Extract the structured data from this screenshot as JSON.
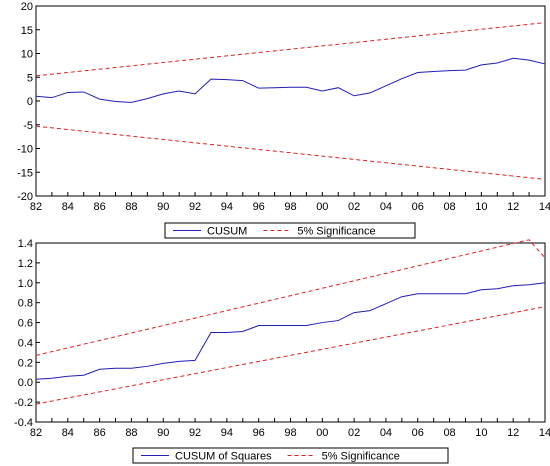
{
  "chart_data": [
    {
      "type": "line",
      "title": "",
      "xlabel": "",
      "ylabel": "",
      "x": [
        1982,
        1983,
        1984,
        1985,
        1986,
        1987,
        1988,
        1989,
        1990,
        1991,
        1992,
        1993,
        1994,
        1995,
        1996,
        1997,
        1998,
        1999,
        2000,
        2001,
        2002,
        2003,
        2004,
        2005,
        2006,
        2007,
        2008,
        2009,
        2010,
        2011,
        2012,
        2013,
        2014
      ],
      "xlim": [
        1982,
        2014
      ],
      "ylim": [
        -20,
        20
      ],
      "x_tick_values": [
        1982,
        1984,
        1986,
        1988,
        1990,
        1992,
        1994,
        1996,
        1998,
        2000,
        2002,
        2004,
        2006,
        2008,
        2010,
        2012,
        2014
      ],
      "x_tick_labels": [
        "82",
        "84",
        "86",
        "88",
        "90",
        "92",
        "94",
        "96",
        "98",
        "00",
        "02",
        "04",
        "06",
        "08",
        "10",
        "12",
        "14"
      ],
      "y_ticks": [
        -20,
        -15,
        -10,
        -5,
        0,
        5,
        10,
        15,
        20
      ],
      "y_tick_labels": [
        "-20",
        "-15",
        "-10",
        "-5",
        "0",
        "5",
        "10",
        "15",
        "20"
      ],
      "series": [
        {
          "name": "CUSUM",
          "color": "#1f1fb4",
          "style": "solid",
          "values": [
            1.0,
            0.7,
            1.8,
            1.9,
            0.4,
            -0.1,
            -0.3,
            0.5,
            1.5,
            2.1,
            1.5,
            4.6,
            4.5,
            4.3,
            2.7,
            2.8,
            2.9,
            2.9,
            2.1,
            2.8,
            1.1,
            1.7,
            3.2,
            4.7,
            6.0,
            6.2,
            6.4,
            6.5,
            7.6,
            8.0,
            9.0,
            8.6,
            7.8
          ]
        },
        {
          "name": "5% Significance",
          "color": "#e02020",
          "style": "dashed",
          "values": [
            5.3,
            5.65,
            6.0,
            6.35,
            6.7,
            7.05,
            7.4,
            7.75,
            8.1,
            8.45,
            8.8,
            9.15,
            9.5,
            9.85,
            10.2,
            10.55,
            10.9,
            11.25,
            11.6,
            11.95,
            12.3,
            12.65,
            13.0,
            13.35,
            13.7,
            14.05,
            14.4,
            14.75,
            15.1,
            15.45,
            15.8,
            16.15,
            16.5
          ]
        },
        {
          "name": "",
          "color": "#e02020",
          "style": "dashed",
          "legend": false,
          "values": [
            -5.3,
            -5.65,
            -6.0,
            -6.35,
            -6.7,
            -7.05,
            -7.4,
            -7.75,
            -8.1,
            -8.45,
            -8.8,
            -9.15,
            -9.5,
            -9.85,
            -10.2,
            -10.55,
            -10.9,
            -11.25,
            -11.6,
            -11.95,
            -12.3,
            -12.65,
            -13.0,
            -13.35,
            -13.7,
            -14.05,
            -14.4,
            -14.75,
            -15.1,
            -15.45,
            -15.8,
            -16.15,
            -16.5
          ]
        }
      ],
      "legend": {
        "position": "bottom-center",
        "entries": [
          "CUSUM",
          "5% Significance"
        ]
      },
      "grid": false
    },
    {
      "type": "line",
      "title": "",
      "xlabel": "",
      "ylabel": "",
      "x": [
        1982,
        1983,
        1984,
        1985,
        1986,
        1987,
        1988,
        1989,
        1990,
        1991,
        1992,
        1993,
        1994,
        1995,
        1996,
        1997,
        1998,
        1999,
        2000,
        2001,
        2002,
        2003,
        2004,
        2005,
        2006,
        2007,
        2008,
        2009,
        2010,
        2011,
        2012,
        2013,
        2014
      ],
      "xlim": [
        1982,
        2014
      ],
      "ylim": [
        -0.4,
        1.4
      ],
      "x_tick_values": [
        1982,
        1984,
        1986,
        1988,
        1990,
        1992,
        1994,
        1996,
        1998,
        2000,
        2002,
        2004,
        2006,
        2008,
        2010,
        2012,
        2014
      ],
      "x_tick_labels": [
        "82",
        "84",
        "86",
        "88",
        "90",
        "92",
        "94",
        "96",
        "98",
        "00",
        "02",
        "04",
        "06",
        "08",
        "10",
        "12",
        "14"
      ],
      "y_ticks": [
        -0.4,
        -0.2,
        0.0,
        0.2,
        0.4,
        0.6,
        0.8,
        1.0,
        1.2,
        1.4
      ],
      "y_tick_labels": [
        "-0.4",
        "-0.2",
        "0.0",
        "0.2",
        "0.4",
        "0.6",
        "0.8",
        "1.0",
        "1.2",
        "1.4"
      ],
      "series": [
        {
          "name": "CUSUM of Squares",
          "color": "#1f1fb4",
          "style": "solid",
          "values": [
            0.03,
            0.04,
            0.06,
            0.07,
            0.13,
            0.14,
            0.14,
            0.16,
            0.19,
            0.21,
            0.22,
            0.5,
            0.5,
            0.51,
            0.57,
            0.57,
            0.57,
            0.57,
            0.6,
            0.62,
            0.7,
            0.72,
            0.79,
            0.86,
            0.89,
            0.89,
            0.89,
            0.89,
            0.93,
            0.94,
            0.97,
            0.98,
            1.0
          ]
        },
        {
          "name": "5% Significance",
          "color": "#e02020",
          "style": "dashed",
          "values": [
            0.27,
            0.3075,
            0.345,
            0.3825,
            0.42,
            0.4575,
            0.495,
            0.5325,
            0.57,
            0.6075,
            0.645,
            0.6825,
            0.72,
            0.7575,
            0.795,
            0.8325,
            0.87,
            0.9075,
            0.945,
            0.9825,
            1.02,
            1.0575,
            1.095,
            1.1325,
            1.17,
            1.2075,
            1.245,
            1.2825,
            1.32,
            1.3575,
            1.395,
            1.4325,
            1.25
          ]
        },
        {
          "name": "",
          "color": "#e02020",
          "style": "dashed",
          "legend": false,
          "values": [
            -0.22,
            -0.1894,
            -0.1588,
            -0.1281,
            -0.0975,
            -0.0669,
            -0.0363,
            -0.0056,
            0.025,
            0.0556,
            0.0863,
            0.1169,
            0.1475,
            0.1781,
            0.2088,
            0.2394,
            0.27,
            0.3006,
            0.3313,
            0.3619,
            0.3925,
            0.4231,
            0.4538,
            0.4844,
            0.515,
            0.5456,
            0.5763,
            0.6069,
            0.6375,
            0.6681,
            0.6988,
            0.7294,
            0.76
          ]
        }
      ],
      "legend": {
        "position": "bottom-center",
        "entries": [
          "CUSUM of Squares",
          "5% Significance"
        ]
      },
      "grid": false
    }
  ]
}
